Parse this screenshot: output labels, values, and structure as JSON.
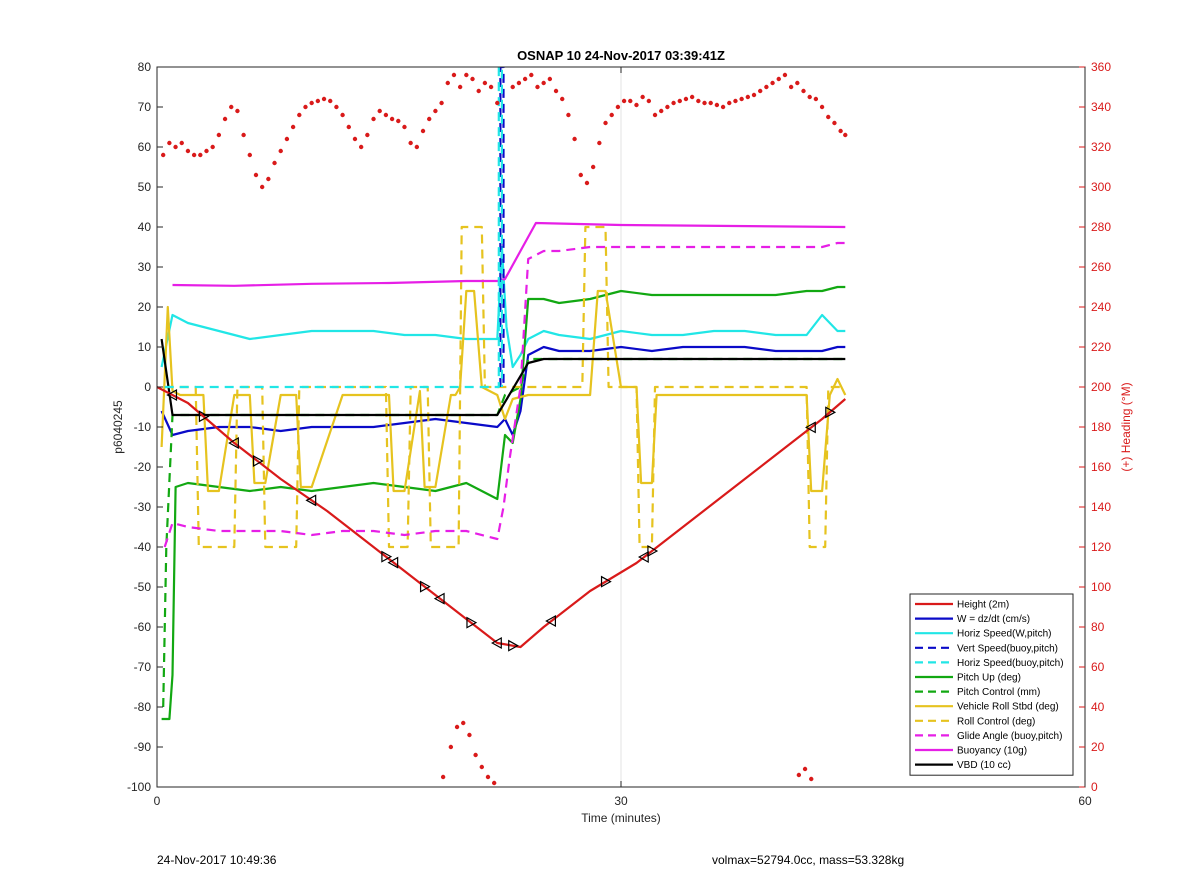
{
  "chart_data": {
    "type": "line",
    "title": "OSNAP 10 24-Nov-2017 03:39:41Z",
    "xlabel": "Time (minutes)",
    "ylabel": "p6040245",
    "y2label": "(+) Heading (°M)",
    "xlim": [
      0,
      60
    ],
    "ylim": [
      -100,
      80
    ],
    "y2lim": [
      0,
      360
    ],
    "xticks": [
      0,
      30,
      60
    ],
    "yticks": [
      -100,
      -90,
      -80,
      -70,
      -60,
      -50,
      -40,
      -30,
      -20,
      -10,
      0,
      10,
      20,
      30,
      40,
      50,
      60,
      70,
      80
    ],
    "y2ticks": [
      0,
      20,
      40,
      60,
      80,
      100,
      120,
      140,
      160,
      180,
      200,
      220,
      240,
      260,
      280,
      300,
      320,
      340,
      360
    ],
    "grid": "x-only",
    "legend_position": "bottom-right",
    "colors": {
      "red": "#d91a1a",
      "blue": "#0a0ac8",
      "cyan": "#21e6e6",
      "green": "#12a812",
      "yellow": "#e6c31f",
      "magenta": "#e61fe6",
      "black": "#000000",
      "heading": "#d91a1a"
    },
    "series": [
      {
        "name": "Height (2m)",
        "color": "#d91a1a",
        "style": "solid",
        "axis": "left",
        "x": [
          0,
          2,
          5,
          8,
          11,
          14,
          17,
          20,
          22,
          23.5,
          25,
          28,
          31,
          34,
          37,
          40,
          43,
          44.5
        ],
        "y": [
          0,
          -4,
          -14,
          -23,
          -31,
          -40,
          -49,
          -58,
          -64,
          -65,
          -60,
          -51,
          -44,
          -35,
          -26,
          -17,
          -8,
          -3
        ]
      },
      {
        "name": "W = dz/dt (cm/s)",
        "color": "#0a0ac8",
        "style": "solid",
        "axis": "left",
        "x": [
          0.3,
          1,
          2,
          4,
          6,
          8,
          10,
          12,
          14,
          16,
          18,
          20,
          22,
          22.5,
          23,
          23.5,
          24,
          25,
          26,
          28,
          30,
          32,
          34,
          36,
          38,
          40,
          42,
          43,
          44,
          44.5
        ],
        "y": [
          -6,
          -12,
          -11,
          -10,
          -10,
          -11,
          -10,
          -10,
          -10,
          -9,
          -8,
          -9,
          -10,
          -8,
          -12,
          -6,
          8,
          10,
          9,
          9,
          10,
          9,
          10,
          10,
          10,
          9,
          9,
          9,
          10,
          10
        ]
      },
      {
        "name": "Horiz Speed(W,pitch)",
        "color": "#21e6e6",
        "style": "solid",
        "axis": "left",
        "x": [
          0.3,
          1,
          2,
          4,
          6,
          8,
          10,
          12,
          14,
          16,
          18,
          20,
          22,
          22.3,
          22.6,
          23,
          23.5,
          24,
          25,
          26,
          28,
          30,
          32,
          34,
          36,
          38,
          40,
          42,
          43,
          44,
          44.5
        ],
        "y": [
          5,
          18,
          16,
          14,
          12,
          13,
          14,
          14,
          14,
          13,
          13,
          12,
          12,
          35,
          15,
          5,
          8,
          12,
          14,
          13,
          12,
          14,
          13,
          13,
          14,
          14,
          13,
          13,
          18,
          14,
          14
        ]
      },
      {
        "name": "Vert Speed(buoy,pitch)",
        "color": "#0a0ac8",
        "style": "dashed",
        "axis": "left",
        "x": [
          22.2,
          22.2,
          22.4,
          22.4
        ],
        "y": [
          0,
          80,
          80,
          0
        ]
      },
      {
        "name": "Horiz Speed(buoy,pitch)",
        "color": "#21e6e6",
        "style": "dashed",
        "axis": "left",
        "x": [
          0.5,
          22,
          22.1,
          22.1,
          22.3,
          22.3
        ],
        "y": [
          0,
          0,
          0,
          80,
          80,
          0
        ]
      },
      {
        "name": "Pitch Up (deg)",
        "color": "#12a812",
        "style": "solid",
        "axis": "left",
        "x": [
          0.3,
          0.8,
          1,
          1.2,
          2,
          4,
          6,
          8,
          10,
          12,
          14,
          16,
          18,
          20,
          22,
          22.5,
          23,
          23.5,
          24,
          25,
          26,
          28,
          30,
          32,
          34,
          36,
          38,
          40,
          42,
          43,
          44,
          44.5
        ],
        "y": [
          -83,
          -83,
          -72,
          -25,
          -24,
          -25,
          -26,
          -25,
          -26,
          -25,
          -24,
          -25,
          -26,
          -24,
          -28,
          -12,
          -14,
          -3,
          22,
          22,
          21,
          22,
          24,
          23,
          23,
          23,
          23,
          23,
          24,
          24,
          25,
          25
        ]
      },
      {
        "name": "Pitch Control (mm)",
        "color": "#12a812",
        "style": "dashed",
        "axis": "left",
        "x": [
          0.4,
          0.6,
          1,
          22,
          22.5,
          23.5,
          24,
          44.5
        ],
        "y": [
          -80,
          -40,
          -7,
          -7,
          -2,
          0,
          7,
          7
        ]
      },
      {
        "name": "Vehicle Roll Stbd (deg)",
        "color": "#e6c31f",
        "style": "solid",
        "axis": "left",
        "x": [
          0.3,
          0.7,
          1,
          1.5,
          2,
          3,
          3.3,
          3.6,
          4,
          5,
          6,
          6.3,
          6.6,
          7,
          8,
          9,
          9.3,
          9.6,
          10,
          12,
          14,
          15,
          15.3,
          15.6,
          16,
          17,
          17.3,
          17.6,
          18,
          19,
          19.3,
          19.6,
          20,
          20.5,
          21,
          22,
          22.5,
          23,
          24,
          26,
          28,
          28.5,
          29,
          30,
          31,
          31.3,
          31.6,
          32,
          32.3,
          33,
          38,
          42,
          42.3,
          42.6,
          43,
          43.5,
          44,
          44.5
        ],
        "y": [
          -15,
          20,
          -1,
          -2,
          -2,
          -2,
          -26,
          -26,
          -26,
          -2,
          -2,
          -24,
          -24,
          -24,
          -2,
          -2,
          -25,
          -25,
          -25,
          -2,
          -2,
          -2,
          -26,
          -26,
          -26,
          -1,
          -25,
          -25,
          -25,
          -2,
          -2,
          0,
          24,
          24,
          0,
          -2,
          -8,
          -3,
          -2,
          -2,
          -2,
          24,
          24,
          0,
          0,
          -24,
          -24,
          -24,
          -2,
          -2,
          -2,
          -2,
          -26,
          -26,
          -26,
          -2,
          2,
          -2
        ]
      },
      {
        "name": "Roll Control (deg)",
        "color": "#e6c31f",
        "style": "dashed",
        "axis": "left",
        "x": [
          0.5,
          2.5,
          2.7,
          5,
          5.2,
          6.8,
          7,
          9,
          9.2,
          12,
          14.8,
          15,
          16.2,
          16.4,
          17.5,
          17.7,
          19.5,
          19.7,
          21,
          21.2,
          22,
          22.5,
          24,
          27.5,
          27.7,
          29,
          29.2,
          31,
          31.2,
          32,
          32.2,
          42,
          42.2,
          43.2,
          43.4,
          44.5
        ],
        "y": [
          0,
          0,
          -40,
          -40,
          0,
          0,
          -40,
          -40,
          0,
          0,
          0,
          -40,
          -40,
          0,
          0,
          -40,
          -40,
          40,
          40,
          0,
          0,
          0,
          0,
          0,
          40,
          40,
          0,
          0,
          -40,
          -40,
          0,
          0,
          -40,
          -40,
          0,
          0
        ]
      },
      {
        "name": "Glide Angle (buoy,pitch)",
        "color": "#e61fe6",
        "style": "dashed",
        "axis": "left",
        "x": [
          0.5,
          1,
          2,
          4,
          6,
          8,
          10,
          12,
          14,
          16,
          18,
          20,
          22,
          22.4,
          22.8,
          23.5,
          24,
          25,
          26,
          28,
          30,
          32,
          34,
          36,
          38,
          40,
          42,
          43,
          44,
          44.5
        ],
        "y": [
          -40,
          -34,
          -35,
          -36,
          -36,
          -36,
          -37,
          -36,
          -36,
          -37,
          -36,
          -36,
          -38,
          -30,
          -18,
          0,
          32,
          34,
          34,
          35,
          35,
          35,
          35,
          35,
          35,
          35,
          35,
          35,
          36,
          36
        ]
      },
      {
        "name": "Buoyancy (10g)",
        "color": "#e61fe6",
        "style": "solid",
        "axis": "left",
        "x": [
          1,
          5,
          10,
          15,
          20,
          22,
          22.5,
          24.5,
          30,
          44.5
        ],
        "y": [
          25.5,
          25.3,
          25.8,
          26,
          26.5,
          26.5,
          27,
          41,
          40.5,
          40
        ]
      },
      {
        "name": "VBD (10 cc)",
        "color": "#000000",
        "style": "solid",
        "axis": "left",
        "x": [
          0.3,
          1,
          22,
          24,
          25,
          44.5
        ],
        "y": [
          12,
          -7,
          -7,
          6,
          7,
          7
        ]
      },
      {
        "name": "Heading",
        "color": "#d91a1a",
        "style": "dots",
        "axis": "right",
        "legend": false,
        "x": [
          0.4,
          0.8,
          1.2,
          1.6,
          2,
          2.4,
          2.8,
          3.2,
          3.6,
          4,
          4.4,
          4.8,
          5.2,
          5.6,
          6,
          6.4,
          6.8,
          7.2,
          7.6,
          8,
          8.4,
          8.8,
          9.2,
          9.6,
          10,
          10.4,
          10.8,
          11.2,
          11.6,
          12,
          12.4,
          12.8,
          13.2,
          13.6,
          14,
          14.4,
          14.8,
          15.2,
          15.6,
          16,
          16.4,
          16.8,
          17.2,
          17.6,
          18,
          18.4,
          18.8,
          19.2,
          19.6,
          20,
          20.4,
          20.8,
          21.2,
          21.6,
          22,
          23,
          23.4,
          23.8,
          24.2,
          24.6,
          25,
          25.4,
          25.8,
          26.2,
          26.6,
          27,
          27.4,
          27.8,
          28.2,
          28.6,
          29,
          29.4,
          29.8,
          30.2,
          30.6,
          31,
          31.4,
          31.8,
          32.2,
          32.6,
          33,
          33.4,
          33.8,
          34.2,
          34.6,
          35,
          35.4,
          35.8,
          36.2,
          36.6,
          37,
          37.4,
          37.8,
          38.2,
          38.6,
          39,
          39.4,
          39.8,
          40.2,
          40.6,
          41,
          41.4,
          41.8,
          42.2,
          42.6,
          43,
          43.4,
          43.8,
          44.2,
          44.5,
          18.5,
          19,
          19.4,
          19.8,
          20.2,
          20.6,
          21,
          21.4,
          21.8,
          41.5,
          41.9,
          42.3
        ],
        "y": [
          316,
          322,
          320,
          322,
          318,
          316,
          316,
          318,
          320,
          326,
          334,
          340,
          338,
          326,
          316,
          306,
          300,
          304,
          312,
          318,
          324,
          330,
          336,
          340,
          342,
          343,
          344,
          343,
          340,
          336,
          330,
          324,
          320,
          326,
          334,
          338,
          336,
          334,
          333,
          330,
          322,
          320,
          328,
          334,
          338,
          342,
          352,
          356,
          350,
          356,
          354,
          348,
          352,
          350,
          342,
          350,
          352,
          354,
          356,
          350,
          352,
          354,
          348,
          344,
          336,
          324,
          306,
          302,
          310,
          322,
          332,
          336,
          340,
          343,
          343,
          341,
          345,
          343,
          336,
          338,
          340,
          342,
          343,
          344,
          345,
          343,
          342,
          342,
          341,
          340,
          342,
          343,
          344,
          345,
          346,
          348,
          350,
          352,
          354,
          356,
          350,
          352,
          348,
          345,
          344,
          340,
          335,
          332,
          328,
          326,
          5,
          20,
          30,
          32,
          26,
          16,
          10,
          5,
          2,
          6,
          9,
          4
        ]
      }
    ]
  },
  "footer": {
    "left": "24-Nov-2017 10:49:36",
    "right": "volmax=52794.0cc, mass=53.328kg"
  }
}
